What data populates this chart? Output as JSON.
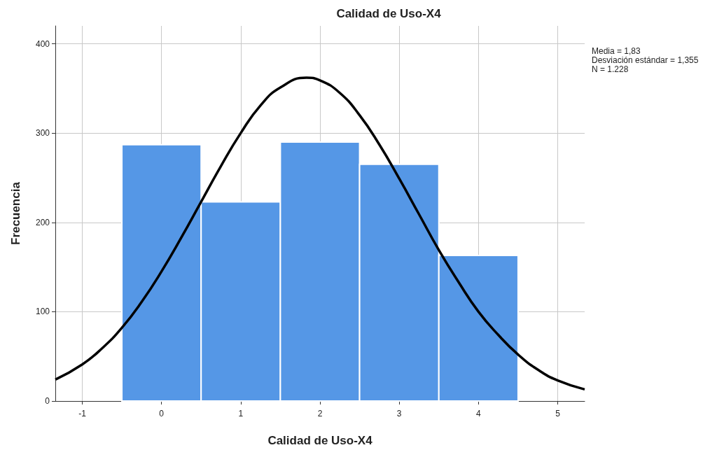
{
  "chart_data": {
    "type": "histogram",
    "title": "Calidad de Uso-X4",
    "xlabel": "Calidad de Uso-X4",
    "ylabel": "Frecuencia",
    "bins": [
      -0.5,
      0.5,
      1.5,
      2.5,
      3.5,
      4.5
    ],
    "values": [
      287,
      223,
      290,
      265,
      163
    ],
    "color": "#5597e6",
    "series": [
      {
        "type": "line",
        "color": "#000000",
        "x": [
          -1.34,
          -1.0,
          -0.75,
          -0.5,
          -0.25,
          0,
          0.25,
          0.5,
          0.75,
          1.0,
          1.25,
          1.5,
          1.83,
          2.0,
          2.25,
          2.5,
          2.75,
          3.0,
          3.25,
          3.5,
          3.75,
          4.0,
          4.25,
          4.5,
          4.75,
          5.0,
          5.34
        ],
        "values": [
          24,
          41,
          59,
          82,
          111,
          145,
          183,
          223,
          263,
          300,
          331,
          351,
          362,
          359,
          345,
          320,
          287,
          249,
          209,
          169,
          133,
          100,
          74,
          52,
          35,
          23,
          13
        ]
      }
    ],
    "marker": "none",
    "line_style": "solid",
    "xlim": [
      -1.34,
      5.34
    ],
    "xticks": [
      -1,
      0,
      1,
      2,
      3,
      4,
      5
    ],
    "ylim": [
      0,
      420
    ],
    "yticks": [
      0,
      100,
      200,
      300,
      400
    ],
    "grid": true,
    "annotations": [
      "Media = 1,83",
      "Desviación estándar = 1,355",
      "N = 1.228"
    ]
  }
}
